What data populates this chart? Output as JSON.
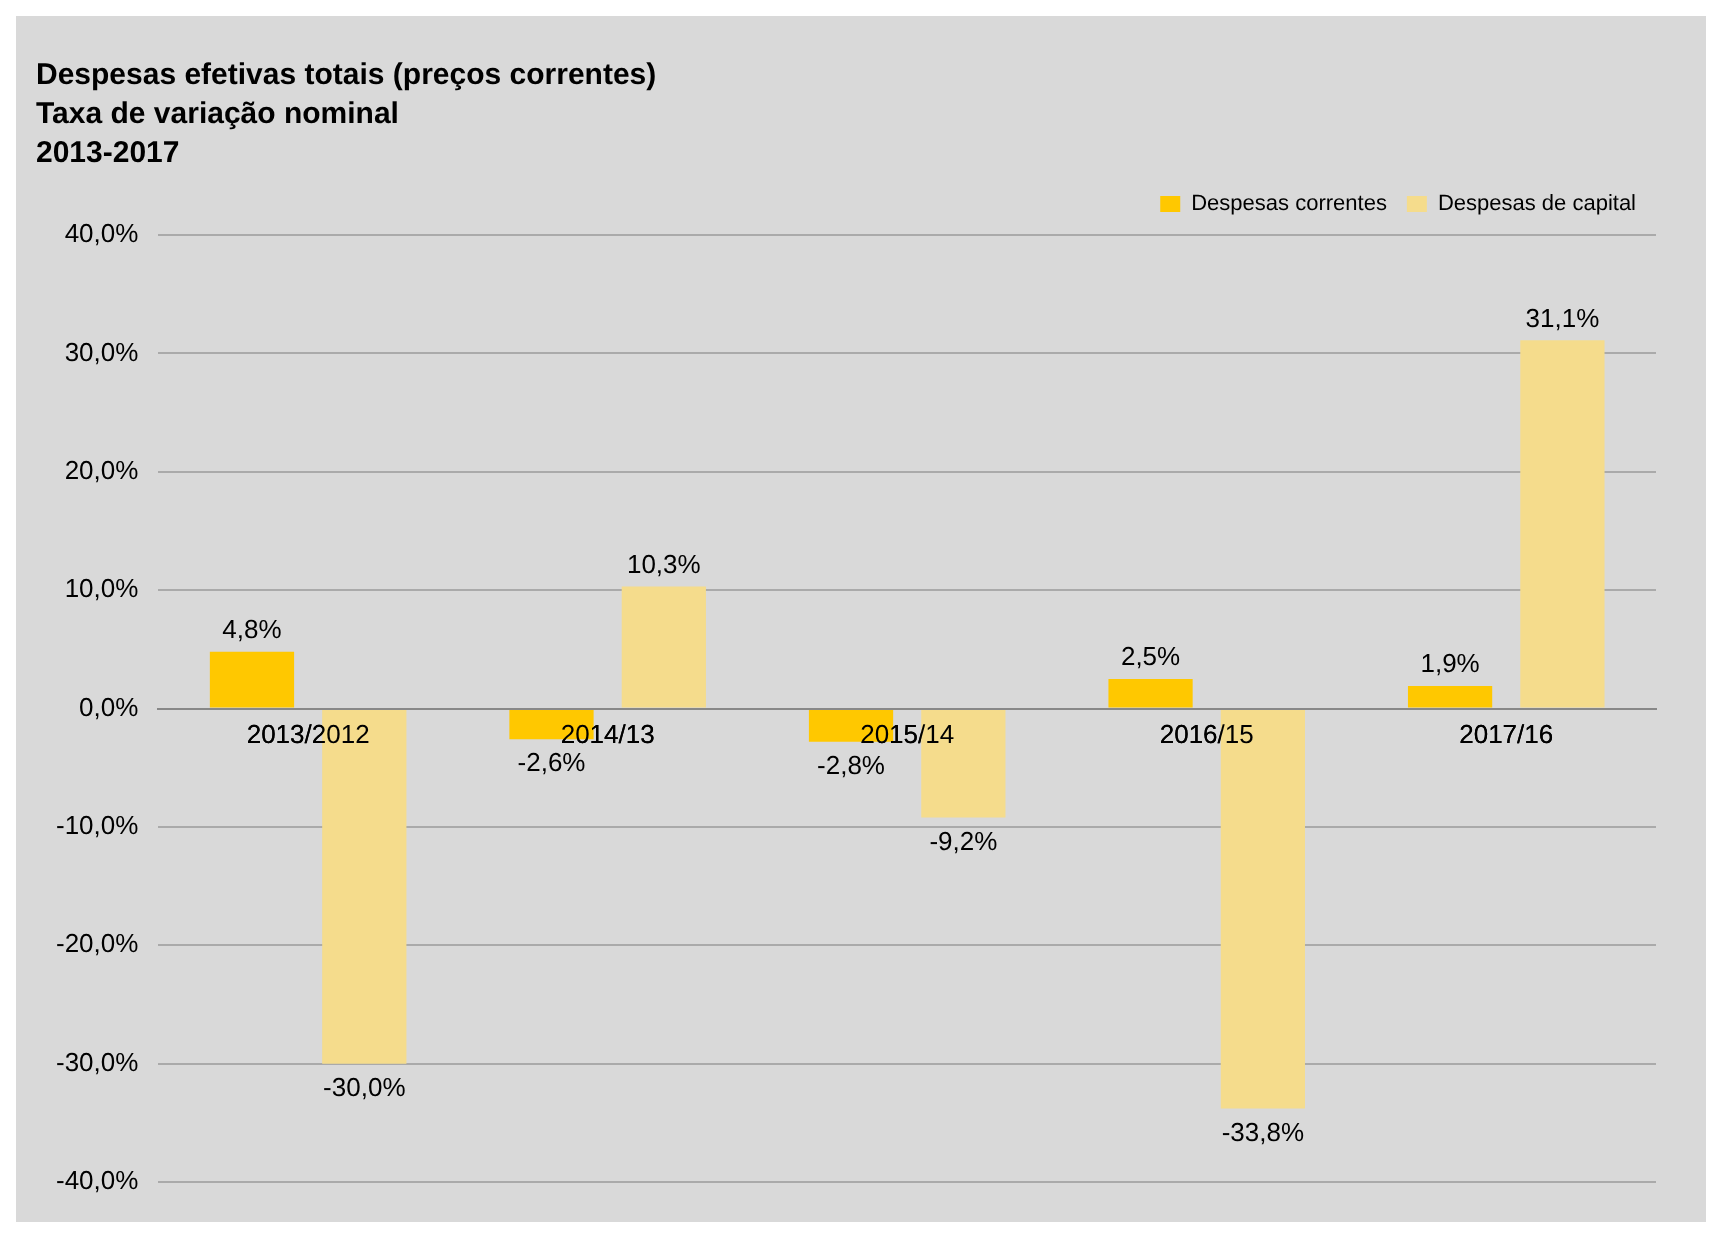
{
  "chart_data": {
    "type": "bar",
    "title": "Despesas efetivas totais (preços correntes)",
    "subtitle": "Taxa de variação nominal",
    "annotations": [
      "2013-2017"
    ],
    "categories": [
      "2013/2012",
      "2014/13",
      "2015/14",
      "2016/15",
      "2017/16"
    ],
    "series": [
      {
        "name": "Despesas correntes",
        "color": "#ffc800",
        "values": [
          4.8,
          -2.6,
          -2.8,
          2.5,
          1.9
        ],
        "value_labels": [
          "4,8%",
          "-2,6%",
          "-2,8%",
          "2,5%",
          "1,9%"
        ]
      },
      {
        "name": "Despesas de capital",
        "color": "#f5dc8c",
        "values": [
          -30.0,
          10.3,
          -9.2,
          -33.8,
          31.1
        ],
        "value_labels": [
          "-30,0%",
          "10,3%",
          "-9,2%",
          "-33,8%",
          "31,1%"
        ]
      }
    ],
    "ylim": [
      -40,
      40
    ],
    "yticks": [
      {
        "value": -40,
        "label": "-40,0%"
      },
      {
        "value": -30,
        "label": "-30,0%"
      },
      {
        "value": -20,
        "label": "-20,0%"
      },
      {
        "value": -10,
        "label": "-10,0%"
      },
      {
        "value": 0,
        "label": "0,0%"
      },
      {
        "value": 10,
        "label": "10,0%"
      },
      {
        "value": 20,
        "label": "20,0%"
      },
      {
        "value": 30,
        "label": "30,0%"
      },
      {
        "value": 40,
        "label": "40,0%"
      }
    ],
    "grid": "y",
    "legend": "top right"
  }
}
